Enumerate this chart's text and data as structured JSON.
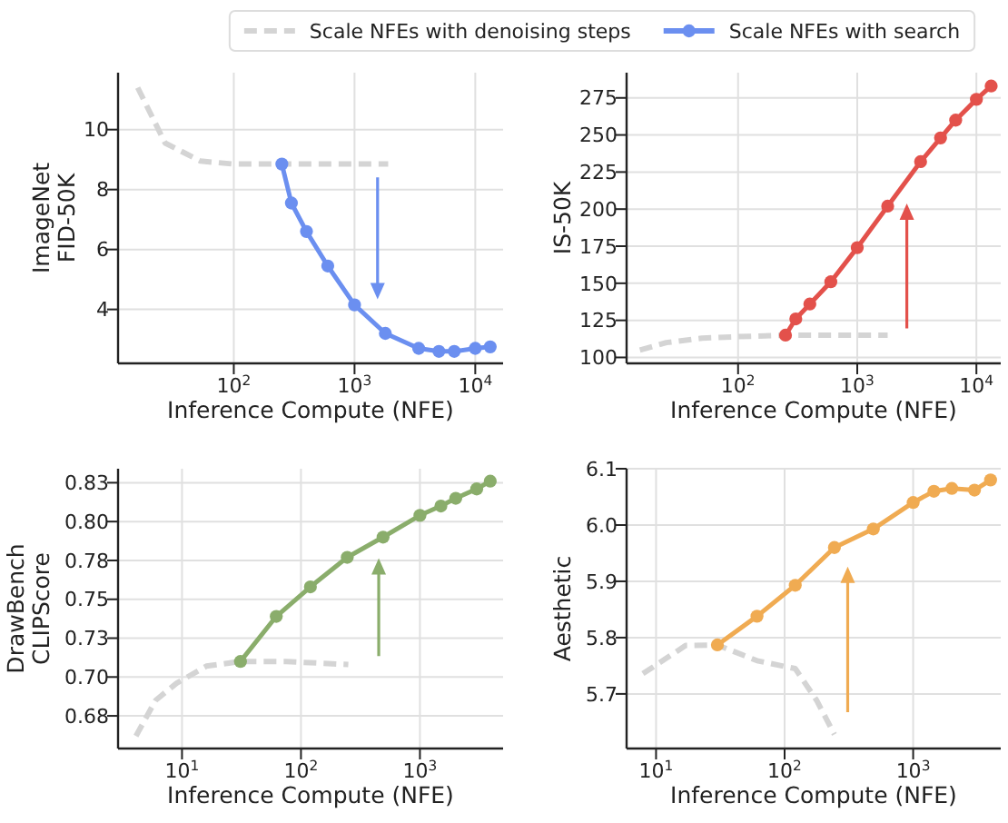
{
  "chart_data": [
    {
      "type": "line",
      "ylabel": "ImageNet\nFID-50K",
      "xlabel": "Inference Compute (NFE)",
      "log": "x",
      "grid": true,
      "legend": "top",
      "marker": "circle",
      "xlim": [
        11,
        17000
      ],
      "ylim": [
        2.2,
        11.9
      ],
      "xticks": [
        {
          "value": 100,
          "label": "10$^{2}$"
        },
        {
          "value": 1000,
          "label": "10$^{3}$"
        },
        {
          "value": 10000,
          "label": "10$^{4}$"
        }
      ],
      "yticks": [
        4,
        6,
        8,
        10
      ],
      "series": [
        {
          "name": "Scale NFEs with denoising steps",
          "color": "#d4d4d4",
          "line_style": "dashed",
          "marker": "none",
          "x": [
            16,
            27,
            53,
            100,
            250,
            1900
          ],
          "values": [
            11.4,
            9.55,
            8.95,
            8.85,
            8.85,
            8.85
          ]
        },
        {
          "name": "Scale NFEs with search",
          "color": "#6b8ff0",
          "line_style": "solid",
          "x": [
            250,
            300,
            400,
            600,
            1000,
            1800,
            3400,
            5000,
            6700,
            10000,
            13300
          ],
          "values": [
            8.85,
            7.55,
            6.6,
            5.45,
            4.15,
            3.2,
            2.7,
            2.6,
            2.6,
            2.7,
            2.75
          ]
        }
      ]
    },
    {
      "type": "line",
      "ylabel": "IS-50K",
      "xlabel": "Inference Compute (NFE)",
      "log": "x",
      "grid": true,
      "marker": "circle",
      "xlim": [
        11.6,
        16000
      ],
      "ylim": [
        96,
        292
      ],
      "xticks": [
        {
          "value": 100,
          "label": "10$^{2}$"
        },
        {
          "value": 1000,
          "label": "10$^{3}$"
        },
        {
          "value": 10000,
          "label": "10$^{4}$"
        }
      ],
      "yticks": [
        100,
        125,
        150,
        175,
        200,
        225,
        250,
        275
      ],
      "series": [
        {
          "color": "#d4d4d4",
          "line_style": "dashed",
          "marker": "none",
          "x": [
            15,
            25,
            50,
            100,
            250,
            1800
          ],
          "values": [
            105,
            110,
            113,
            114,
            115,
            115
          ]
        },
        {
          "color": "#e3514b",
          "line_style": "solid",
          "x": [
            250,
            305,
            400,
            600,
            1000,
            1800,
            3400,
            5000,
            6700,
            10000,
            13300
          ],
          "values": [
            115,
            126,
            136,
            151,
            174,
            202,
            232,
            248,
            260,
            274,
            283
          ]
        }
      ]
    },
    {
      "type": "line",
      "ylabel": "DrawBench\nCLIPScore",
      "xlabel": "Inference Compute (NFE)",
      "log": "x",
      "grid": true,
      "marker": "circle",
      "xlim": [
        2.9,
        5000
      ],
      "ylim": [
        0.654,
        0.834
      ],
      "xticks": [
        {
          "value": 10,
          "label": "10$^{1}$"
        },
        {
          "value": 100,
          "label": "10$^{2}$"
        },
        {
          "value": 1000,
          "label": "10$^{3}$"
        }
      ],
      "yticks": [
        {
          "value": 0.675,
          "label": "0.68"
        },
        {
          "value": 0.7,
          "label": "0.70"
        },
        {
          "value": 0.725,
          "label": "0.73"
        },
        {
          "value": 0.75,
          "label": "0.75"
        },
        {
          "value": 0.775,
          "label": "0.78"
        },
        {
          "value": 0.8,
          "label": "0.80"
        },
        {
          "value": 0.825,
          "label": "0.83"
        }
      ],
      "series": [
        {
          "color": "#d4d4d4",
          "line_style": "dashed",
          "marker": "none",
          "x": [
            4.1,
            6,
            9,
            16,
            31,
            75,
            250
          ],
          "values": [
            0.662,
            0.685,
            0.696,
            0.707,
            0.71,
            0.71,
            0.708
          ]
        },
        {
          "color": "#8aad6b",
          "line_style": "solid",
          "x": [
            31,
            62,
            120,
            245,
            490,
            1000,
            1500,
            2000,
            3000,
            3900
          ],
          "values": [
            0.71,
            0.739,
            0.758,
            0.777,
            0.79,
            0.804,
            0.81,
            0.815,
            0.821,
            0.826
          ]
        }
      ]
    },
    {
      "type": "line",
      "ylabel": "Aesthetic",
      "xlabel": "Inference Compute (NFE)",
      "log": "x",
      "grid": true,
      "marker": "circle",
      "xlim": [
        5.9,
        4800
      ],
      "ylim": [
        5.603,
        6.1
      ],
      "xticks": [
        {
          "value": 10,
          "label": "10$^{1}$"
        },
        {
          "value": 100,
          "label": "10$^{2}$"
        },
        {
          "value": 1000,
          "label": "10$^{3}$"
        }
      ],
      "yticks": [
        5.7,
        5.8,
        5.9,
        {
          "value": 6,
          "label": "6.0"
        },
        6.1
      ],
      "series": [
        {
          "color": "#d4d4d4",
          "line_style": "dashed",
          "marker": "none",
          "x": [
            7.9,
            17,
            30,
            61,
            121,
            177,
            244
          ],
          "values": [
            5.736,
            5.786,
            5.787,
            5.759,
            5.745,
            5.689,
            5.628
          ]
        },
        {
          "color": "#f0ab52",
          "line_style": "solid",
          "x": [
            30,
            61,
            121,
            244,
            490,
            1000,
            1450,
            2000,
            3000,
            4000
          ],
          "values": [
            5.787,
            5.838,
            5.893,
            5.96,
            5.993,
            6.04,
            6.06,
            6.065,
            6.062,
            6.08
          ]
        }
      ]
    }
  ]
}
